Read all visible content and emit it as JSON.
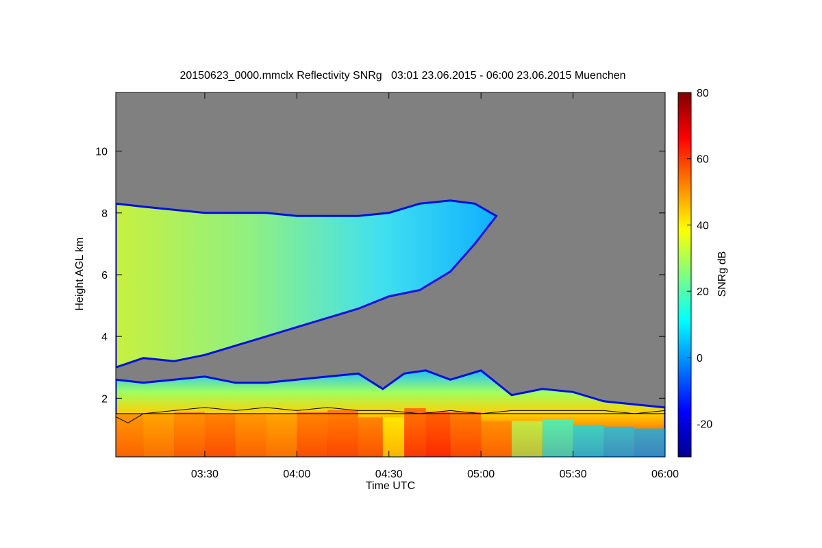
{
  "chart_data": {
    "type": "heatmap",
    "title": "20150623_0000.mmclx Reflectivity SNRg   03:01 23.06.2015 - 06:00 23.06.2015 Muenchen",
    "xlabel": "Time UTC",
    "ylabel": "Height AGL km",
    "colorbar_label": "SNRg dB",
    "x_unit": "minutes after 03:00 UTC",
    "xlim": [
      1,
      180
    ],
    "ylim": [
      0.1,
      11.9
    ],
    "x_ticks": [
      {
        "value": 30,
        "label": "03:30"
      },
      {
        "value": 60,
        "label": "04:00"
      },
      {
        "value": 90,
        "label": "04:30"
      },
      {
        "value": 120,
        "label": "05:00"
      },
      {
        "value": 150,
        "label": "05:30"
      },
      {
        "value": 180,
        "label": "06:00"
      }
    ],
    "y_ticks": [
      {
        "value": 2,
        "label": "2"
      },
      {
        "value": 4,
        "label": "4"
      },
      {
        "value": 6,
        "label": "6"
      },
      {
        "value": 8,
        "label": "8"
      },
      {
        "value": 10,
        "label": "10"
      }
    ],
    "colorbar_range": [
      -30,
      80
    ],
    "colorbar_ticks": [
      {
        "value": -20,
        "label": "-20"
      },
      {
        "value": 0,
        "label": "0"
      },
      {
        "value": 20,
        "label": "20"
      },
      {
        "value": 40,
        "label": "40"
      },
      {
        "value": 60,
        "label": "60"
      },
      {
        "value": 80,
        "label": "80"
      }
    ],
    "colormap": [
      "#00008f",
      "#0000ff",
      "#0080ff",
      "#00ffff",
      "#80ff80",
      "#ffff00",
      "#ff8000",
      "#ff0000",
      "#800000"
    ],
    "background_color": "#808080",
    "upper_layer": {
      "time": [
        1,
        10,
        20,
        30,
        40,
        50,
        60,
        70,
        80,
        90,
        100,
        110,
        118,
        125
      ],
      "top_km": [
        8.3,
        8.2,
        8.1,
        8.0,
        8.0,
        8.0,
        7.9,
        7.9,
        7.9,
        8.0,
        8.3,
        8.4,
        8.3,
        7.9
      ],
      "base_km": [
        3.0,
        3.3,
        3.2,
        3.4,
        3.7,
        4.0,
        4.3,
        4.6,
        4.9,
        5.3,
        5.5,
        6.1,
        7.0,
        7.9
      ]
    },
    "lower_layer": {
      "time": [
        1,
        10,
        20,
        30,
        40,
        50,
        60,
        70,
        80,
        88,
        95,
        102,
        110,
        120,
        130,
        140,
        150,
        160,
        170,
        180
      ],
      "top_km": [
        2.6,
        2.5,
        2.6,
        2.7,
        2.5,
        2.5,
        2.6,
        2.7,
        2.8,
        2.3,
        2.8,
        2.9,
        2.6,
        2.9,
        2.1,
        2.3,
        2.2,
        1.9,
        1.8,
        1.7
      ],
      "snr_mean_db": [
        52,
        50,
        53,
        55,
        52,
        50,
        55,
        56,
        54,
        40,
        58,
        60,
        56,
        52,
        30,
        15,
        8,
        5,
        3,
        2
      ]
    },
    "line_series": [
      {
        "type": "boundary_layer_height",
        "time": [
          1,
          5,
          10,
          20,
          30,
          40,
          50,
          60,
          70,
          80,
          90,
          100,
          110,
          120,
          130,
          140,
          150,
          160,
          170,
          180
        ],
        "height_km": [
          1.4,
          1.2,
          1.5,
          1.6,
          1.7,
          1.6,
          1.7,
          1.6,
          1.7,
          1.6,
          1.6,
          1.5,
          1.6,
          1.5,
          1.6,
          1.6,
          1.6,
          1.6,
          1.5,
          1.6
        ]
      },
      {
        "type": "constant_height",
        "height_km": 1.5
      }
    ]
  }
}
